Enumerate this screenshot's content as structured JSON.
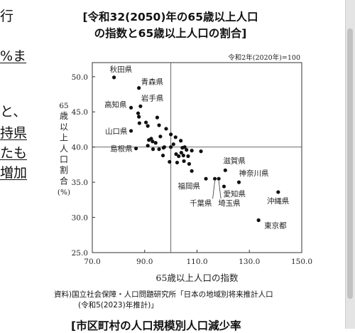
{
  "left_text": {
    "fragments": [
      "行",
      "%ま",
      "と、",
      "持県",
      "たも",
      "増加"
    ]
  },
  "chart_data": {
    "type": "scatter",
    "title": [
      "[令和32(2050)年の65歳以上人口",
      "の指数と65歳以上人口の割合]"
    ],
    "subtitle": "令和2年(2020年)=100",
    "xlabel": "65歳以上人口の指数",
    "ylabel": [
      "65",
      "歳",
      "以",
      "上",
      "人",
      "口",
      "割",
      "合",
      "(%)"
    ],
    "xlim": [
      70,
      150
    ],
    "ylim": [
      25,
      52
    ],
    "xticks": [
      70,
      90,
      110,
      130,
      150
    ],
    "xtick_labels": [
      "70.0",
      "90.0",
      "110.0",
      "130.0",
      "150.0"
    ],
    "yticks": [
      25,
      30,
      35,
      40,
      45,
      50
    ],
    "ytick_labels": [
      "25.0",
      "30.0",
      "35.0",
      "40.0",
      "45.0",
      "50.0"
    ],
    "reference_lines": {
      "x": 100,
      "y": 40
    },
    "grid": false,
    "labeled_points": [
      {
        "label": "秋田県",
        "x": 78.3,
        "y": 49.9
      },
      {
        "label": "青森県",
        "x": 87.8,
        "y": 48.4
      },
      {
        "label": "高知県",
        "x": 84.8,
        "y": 45.6
      },
      {
        "label": "岩手県",
        "x": 88.4,
        "y": 45.8
      },
      {
        "label": "山口県",
        "x": 84.8,
        "y": 42.3
      },
      {
        "label": "島根県",
        "x": 86.7,
        "y": 39.8
      },
      {
        "label": "滋賀県",
        "x": 120.8,
        "y": 36.7
      },
      {
        "label": "神奈川県",
        "x": 126.0,
        "y": 35.0
      },
      {
        "label": "愛知県",
        "x": 120.3,
        "y": 34.4
      },
      {
        "label": "福岡県",
        "x": 113.4,
        "y": 35.5
      },
      {
        "label": "千葉県",
        "x": 116.8,
        "y": 35.5
      },
      {
        "label": "埼玉県",
        "x": 118.3,
        "y": 35.5
      },
      {
        "label": "沖縄県",
        "x": 141.0,
        "y": 33.6
      },
      {
        "label": "東京都",
        "x": 133.5,
        "y": 29.6
      }
    ],
    "other_points": [
      [
        87.5,
        44.8
      ],
      [
        87.8,
        44.3
      ],
      [
        88.0,
        43.4
      ],
      [
        90.5,
        43.5
      ],
      [
        91.2,
        43.0
      ],
      [
        92.5,
        41.2
      ],
      [
        93.0,
        40.8
      ],
      [
        94.8,
        44.2
      ],
      [
        95.5,
        43.1
      ],
      [
        96.0,
        41.5
      ],
      [
        95.5,
        39.7
      ],
      [
        97.5,
        40.0
      ],
      [
        98.2,
        42.6
      ],
      [
        100.0,
        41.8
      ],
      [
        100.0,
        40.0
      ],
      [
        101.8,
        41.4
      ],
      [
        101.0,
        40.4
      ],
      [
        103.8,
        40.9
      ],
      [
        104.4,
        39.9
      ],
      [
        105.3,
        40.0
      ],
      [
        106.0,
        39.6
      ],
      [
        104.8,
        38.8
      ],
      [
        103.0,
        38.7
      ],
      [
        102.0,
        39.0
      ],
      [
        102.4,
        37.8
      ],
      [
        105.0,
        38.0
      ],
      [
        107.0,
        37.6
      ],
      [
        108.0,
        39.5
      ],
      [
        111.5,
        39.4
      ],
      [
        108.0,
        36.6
      ],
      [
        97.0,
        38.8
      ],
      [
        94.2,
        40.6
      ],
      [
        91.2,
        40.2
      ],
      [
        93.2,
        39.7
      ],
      [
        99.5,
        37.9
      ],
      [
        97.2,
        39.9
      ],
      [
        104.0,
        39.2
      ],
      [
        91.6,
        41.0
      ],
      [
        106.6,
        38.7
      ]
    ]
  },
  "source": [
    "資料)国立社会保障・人口問題研究所「日本の地域別将来推計人口",
    "(令和5(2023)年推計)」"
  ],
  "next_title": "[市区町村の人口規模別人口減少率"
}
